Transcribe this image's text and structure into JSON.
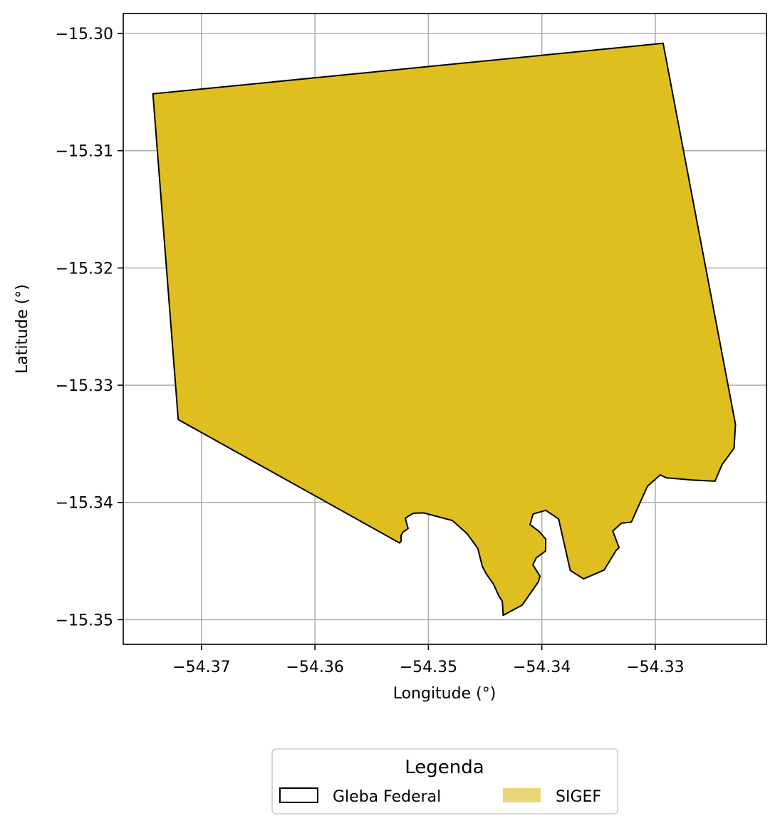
{
  "chart_data": {
    "type": "map",
    "xlabel": "Longitude (°)",
    "ylabel": "Latitude (°)",
    "xlim": [
      -54.3769,
      -54.3202
    ],
    "ylim": [
      -15.3521,
      -15.2983
    ],
    "xticks": [
      -54.37,
      -54.36,
      -54.35,
      -54.34,
      -54.33
    ],
    "yticks": [
      -15.3,
      -15.31,
      -15.32,
      -15.33,
      -15.34,
      -15.35
    ],
    "xtick_labels": [
      "−54.37",
      "−54.36",
      "−54.35",
      "−54.34",
      "−54.33"
    ],
    "ytick_labels": [
      "−15.30",
      "−15.31",
      "−15.32",
      "−15.33",
      "−15.34",
      "−15.35"
    ],
    "grid": true,
    "layers": [
      {
        "name": "Gleba Federal",
        "fill_color": "#dfbe20",
        "edge_color": "#000000",
        "polygon_lonlat": [
          [
            -54.37428,
            -15.30515
          ],
          [
            -54.32931,
            -15.30084
          ],
          [
            -54.32293,
            -15.33334
          ],
          [
            -54.32306,
            -15.33537
          ],
          [
            -54.32412,
            -15.33678
          ],
          [
            -54.32474,
            -15.33819
          ],
          [
            -54.32661,
            -15.3381
          ],
          [
            -54.32903,
            -15.3379
          ],
          [
            -54.32956,
            -15.33765
          ],
          [
            -54.33069,
            -15.33862
          ],
          [
            -54.33211,
            -15.34168
          ],
          [
            -54.33298,
            -15.34177
          ],
          [
            -54.33375,
            -15.34244
          ],
          [
            -54.33319,
            -15.34385
          ],
          [
            -54.33344,
            -15.34408
          ],
          [
            -54.33451,
            -15.34576
          ],
          [
            -54.33631,
            -15.34652
          ],
          [
            -54.3375,
            -15.3458
          ],
          [
            -54.33852,
            -15.3414
          ],
          [
            -54.33966,
            -15.34067
          ],
          [
            -54.34077,
            -15.34098
          ],
          [
            -54.34104,
            -15.34189
          ],
          [
            -54.34023,
            -15.34248
          ],
          [
            -54.33965,
            -15.34313
          ],
          [
            -54.33968,
            -15.34415
          ],
          [
            -54.34049,
            -15.34471
          ],
          [
            -54.34079,
            -15.34532
          ],
          [
            -54.34016,
            -15.34629
          ],
          [
            -54.34032,
            -15.34679
          ],
          [
            -54.34174,
            -15.34876
          ],
          [
            -54.34341,
            -15.34963
          ],
          [
            -54.34348,
            -15.34843
          ],
          [
            -54.34378,
            -15.34799
          ],
          [
            -54.34426,
            -15.34697
          ],
          [
            -54.34488,
            -15.34612
          ],
          [
            -54.34525,
            -15.34546
          ],
          [
            -54.34564,
            -15.34392
          ],
          [
            -54.34611,
            -15.3433
          ],
          [
            -54.34661,
            -15.34264
          ],
          [
            -54.34789,
            -15.34154
          ],
          [
            -54.35042,
            -15.34089
          ],
          [
            -54.3513,
            -15.34092
          ],
          [
            -54.35173,
            -15.34114
          ],
          [
            -54.35203,
            -15.34134
          ],
          [
            -54.3519,
            -15.34184
          ],
          [
            -54.35179,
            -15.34222
          ],
          [
            -54.35224,
            -15.34253
          ],
          [
            -54.35242,
            -15.34282
          ],
          [
            -54.3524,
            -15.34325
          ],
          [
            -54.35253,
            -15.34346
          ],
          [
            -54.37205,
            -15.33293
          ]
        ]
      }
    ],
    "legend": {
      "title": "Legenda",
      "placement": "bottom-center",
      "entries": [
        {
          "label": "Gleba Federal",
          "style": "outline",
          "edge_color": "#000000",
          "fill_color": "#ffffff"
        },
        {
          "label": "SIGEF",
          "style": "fill",
          "fill_color": "#ecd577"
        }
      ]
    }
  }
}
